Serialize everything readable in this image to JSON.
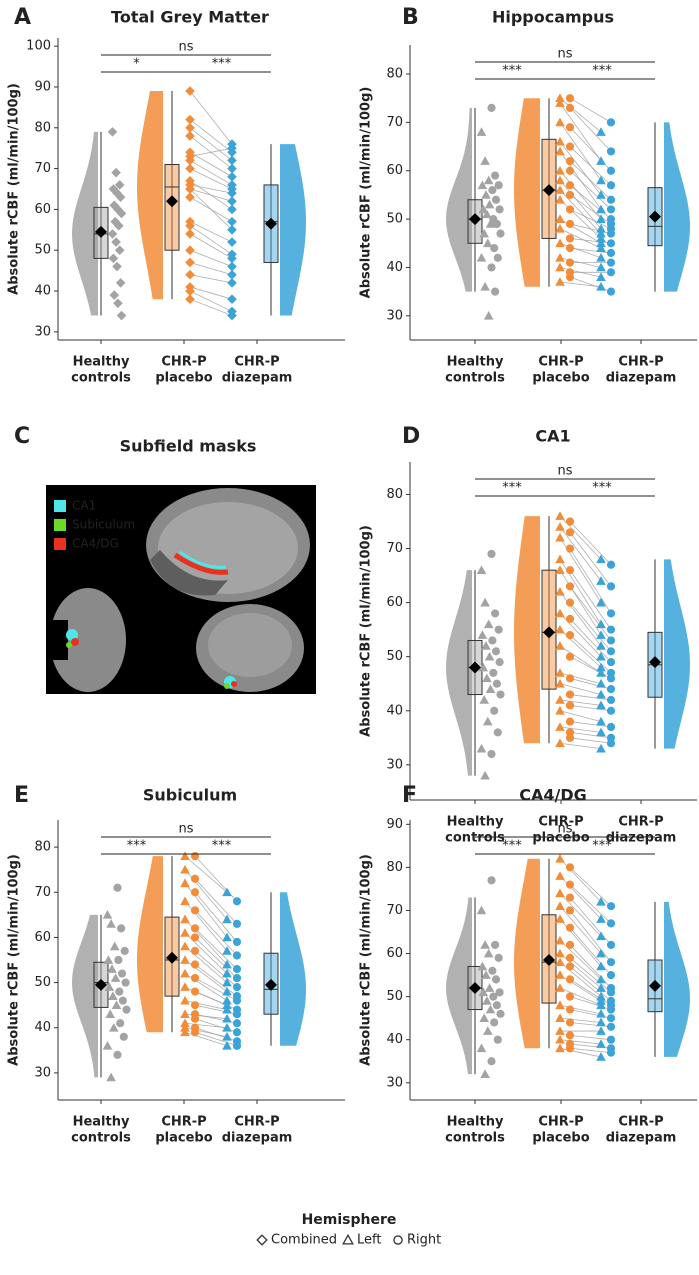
{
  "chart_data": [
    {
      "type": "raincloud",
      "panel": "A",
      "title": "Total Grey Matter",
      "ylabel": "Absolute rCBF (ml/min/100g)",
      "categories": [
        [
          "Healthy",
          "controls"
        ],
        [
          "CHR-P",
          "placebo"
        ],
        [
          "CHR-P",
          "diazepam"
        ]
      ],
      "colors": [
        "#a3a3a3",
        "#f28c38",
        "#3aa3d8"
      ],
      "ylim": [
        28,
        102
      ],
      "yticks": [
        30,
        40,
        50,
        60,
        70,
        80,
        90,
        100
      ],
      "groups": [
        {
          "box": [
            34,
            48,
            54,
            60.5,
            79
          ],
          "mean": 54.5,
          "combined": [
            79,
            69,
            66,
            65,
            64,
            63,
            61,
            60,
            59,
            57,
            56,
            54,
            52,
            50,
            48,
            46,
            42,
            39,
            37,
            34
          ]
        },
        {
          "box": [
            38,
            50,
            65.5,
            71,
            89
          ],
          "mean": 62,
          "combined": [
            89,
            82,
            80,
            78,
            74,
            73,
            72,
            70,
            67,
            66,
            65,
            65,
            63,
            57,
            56,
            54,
            50,
            47,
            44,
            41,
            40,
            38
          ]
        },
        {
          "box": [
            34,
            47,
            57,
            66,
            76
          ],
          "mean": 56.5,
          "combined": [
            76,
            74,
            72,
            70,
            68,
            75,
            66,
            65,
            60,
            64,
            62,
            55,
            57,
            52,
            49,
            48,
            46,
            44,
            42,
            38,
            35,
            34
          ]
        }
      ],
      "comparisons": [
        {
          "groups": [
            0,
            2
          ],
          "label": "ns"
        },
        {
          "groups": [
            0,
            1
          ],
          "label": "*"
        },
        {
          "groups": [
            1,
            2
          ],
          "label": "***"
        }
      ]
    },
    {
      "type": "raincloud",
      "panel": "B",
      "title": "Hippocampus",
      "ylabel": "Absolute rCBF (ml/min/100g)",
      "categories": [
        [
          "Healthy",
          "controls"
        ],
        [
          "CHR-P",
          "placebo"
        ],
        [
          "CHR-P",
          "diazepam"
        ]
      ],
      "colors": [
        "#a3a3a3",
        "#f28c38",
        "#3aa3d8"
      ],
      "ylim": [
        25,
        86
      ],
      "yticks": [
        30,
        40,
        50,
        60,
        70,
        80
      ],
      "groups": [
        {
          "box": [
            35,
            45,
            50,
            54,
            73
          ],
          "mean": 50,
          "left": [
            68,
            62,
            58,
            57,
            55,
            53,
            52,
            51,
            49,
            47,
            45,
            42,
            36,
            30
          ],
          "right": [
            73,
            59,
            57,
            56,
            54,
            52,
            50,
            49,
            47,
            44,
            42,
            40,
            35
          ]
        },
        {
          "box": [
            36,
            46,
            56,
            66.5,
            75
          ],
          "mean": 56,
          "left": [
            75,
            74,
            70,
            66,
            64,
            60,
            58,
            56,
            54,
            50,
            48,
            45,
            42,
            40,
            37
          ],
          "right": [
            75,
            73,
            69,
            65,
            62,
            60,
            57,
            55,
            52,
            49,
            46,
            44,
            41,
            39,
            38
          ]
        },
        {
          "box": [
            35,
            44.5,
            48.5,
            56.5,
            70
          ],
          "mean": 50.5,
          "left": [
            68,
            62,
            58,
            55,
            52,
            50,
            48,
            47,
            46,
            45,
            44,
            42,
            40,
            38,
            36
          ],
          "right": [
            70,
            64,
            60,
            57,
            54,
            52,
            50,
            49,
            48,
            47,
            45,
            43,
            41,
            39,
            35
          ]
        }
      ],
      "comparisons": [
        {
          "groups": [
            0,
            2
          ],
          "label": "ns"
        },
        {
          "groups": [
            0,
            1
          ],
          "label": "***"
        },
        {
          "groups": [
            1,
            2
          ],
          "label": "***"
        }
      ]
    },
    {
      "type": "raincloud",
      "panel": "D",
      "title": "CA1",
      "ylabel": "Absolute rCBF (ml/min/100g)",
      "categories": [
        [
          "Healthy",
          "controls"
        ],
        [
          "CHR-P",
          "placebo"
        ],
        [
          "CHR-P",
          "diazepam"
        ]
      ],
      "colors": [
        "#a3a3a3",
        "#f28c38",
        "#3aa3d8"
      ],
      "ylim": [
        23.5,
        86
      ],
      "yticks": [
        30,
        40,
        50,
        60,
        70,
        80
      ],
      "groups": [
        {
          "box": [
            28,
            43,
            48,
            53,
            66
          ],
          "mean": 48,
          "left": [
            66,
            60,
            56,
            54,
            52,
            50,
            48,
            46,
            44,
            42,
            38,
            33,
            28
          ],
          "right": [
            69,
            58,
            55,
            53,
            51,
            49,
            47,
            45,
            43,
            40,
            36,
            32
          ]
        },
        {
          "box": [
            34,
            44,
            54.5,
            66,
            76
          ],
          "mean": 54.5,
          "left": [
            76,
            74,
            72,
            68,
            66,
            62,
            58,
            55,
            52,
            47,
            45,
            42,
            40,
            37,
            34
          ],
          "right": [
            75,
            73,
            70,
            66,
            63,
            60,
            57,
            54,
            50,
            46,
            43,
            41,
            38,
            36,
            35
          ]
        },
        {
          "box": [
            33,
            42.5,
            48.5,
            54.5,
            68
          ],
          "mean": 49,
          "left": [
            68,
            64,
            60,
            56,
            54,
            52,
            50,
            48,
            47,
            45,
            43,
            41,
            38,
            36,
            33
          ],
          "right": [
            67,
            63,
            58,
            55,
            53,
            51,
            49,
            47,
            46,
            44,
            42,
            40,
            37,
            35,
            34
          ]
        }
      ],
      "comparisons": [
        {
          "groups": [
            0,
            2
          ],
          "label": "ns"
        },
        {
          "groups": [
            0,
            1
          ],
          "label": "***"
        },
        {
          "groups": [
            1,
            2
          ],
          "label": "***"
        }
      ]
    },
    {
      "type": "raincloud",
      "panel": "E",
      "title": "Subiculum",
      "ylabel": "Absolute rCBF (ml/min/100g)",
      "categories": [
        [
          "Healthy",
          "controls"
        ],
        [
          "CHR-P",
          "placebo"
        ],
        [
          "CHR-P",
          "diazepam"
        ]
      ],
      "colors": [
        "#a3a3a3",
        "#f28c38",
        "#3aa3d8"
      ],
      "ylim": [
        24,
        86
      ],
      "yticks": [
        30,
        40,
        50,
        60,
        70,
        80
      ],
      "groups": [
        {
          "box": [
            29,
            44.5,
            50,
            54.5,
            65
          ],
          "mean": 49.5,
          "left": [
            65,
            63,
            58,
            55,
            53,
            51,
            49,
            47,
            45,
            43,
            40,
            36,
            29
          ],
          "right": [
            71,
            62,
            57,
            55,
            52,
            50,
            48,
            46,
            44,
            41,
            38,
            34
          ]
        },
        {
          "box": [
            39,
            47,
            55,
            64.5,
            78
          ],
          "mean": 55.5,
          "left": [
            78,
            75,
            72,
            68,
            64,
            61,
            58,
            55,
            52,
            49,
            46,
            43,
            41,
            40,
            39
          ],
          "right": [
            78,
            73,
            70,
            66,
            62,
            60,
            57,
            54,
            51,
            48,
            45,
            43,
            42,
            40,
            39
          ]
        },
        {
          "box": [
            36,
            43,
            48.5,
            56.5,
            70
          ],
          "mean": 49.5,
          "left": [
            70,
            64,
            60,
            57,
            54,
            52,
            50,
            48,
            46,
            45,
            44,
            42,
            40,
            38,
            36
          ],
          "right": [
            68,
            63,
            59,
            56,
            53,
            51,
            49,
            47,
            46,
            44,
            43,
            41,
            39,
            37,
            36
          ]
        }
      ],
      "comparisons": [
        {
          "groups": [
            0,
            2
          ],
          "label": "ns"
        },
        {
          "groups": [
            0,
            1
          ],
          "label": "***"
        },
        {
          "groups": [
            1,
            2
          ],
          "label": "***"
        }
      ]
    },
    {
      "type": "raincloud",
      "panel": "F",
      "title": "CA4/DG",
      "ylabel": "Absolute rCBF (ml/min/100g)",
      "categories": [
        [
          "Healthy",
          "controls"
        ],
        [
          "CHR-P",
          "placebo"
        ],
        [
          "CHR-P",
          "diazepam"
        ]
      ],
      "colors": [
        "#a3a3a3",
        "#f28c38",
        "#3aa3d8"
      ],
      "ylim": [
        26,
        91
      ],
      "yticks": [
        30,
        40,
        50,
        60,
        70,
        80,
        90
      ],
      "groups": [
        {
          "box": [
            32,
            47,
            52,
            57,
            73
          ],
          "mean": 52,
          "left": [
            70,
            62,
            60,
            57,
            55,
            52,
            51,
            49,
            47,
            45,
            42,
            38,
            32
          ],
          "right": [
            77,
            62,
            59,
            56,
            54,
            51,
            50,
            48,
            46,
            44,
            40,
            35
          ]
        },
        {
          "box": [
            38,
            48.5,
            58,
            69,
            82
          ],
          "mean": 58.5,
          "left": [
            82,
            78,
            74,
            71,
            68,
            63,
            60,
            58,
            55,
            52,
            48,
            45,
            42,
            40,
            38
          ],
          "right": [
            80,
            76,
            73,
            70,
            66,
            62,
            59,
            57,
            54,
            50,
            47,
            44,
            41,
            39,
            38
          ]
        },
        {
          "box": [
            36,
            46.5,
            49.5,
            58.5,
            72
          ],
          "mean": 52.5,
          "left": [
            72,
            68,
            64,
            60,
            57,
            54,
            52,
            50,
            49,
            48,
            46,
            44,
            42,
            39,
            36
          ],
          "right": [
            71,
            67,
            62,
            58,
            55,
            52,
            51,
            49,
            48,
            47,
            45,
            43,
            40,
            38,
            37
          ]
        }
      ],
      "comparisons": [
        {
          "groups": [
            0,
            2
          ],
          "label": "ns"
        },
        {
          "groups": [
            0,
            1
          ],
          "label": "***"
        },
        {
          "groups": [
            1,
            2
          ],
          "label": "***"
        }
      ]
    }
  ],
  "image_panel": {
    "panel": "C",
    "title": "Subfield masks",
    "legend": [
      {
        "label": "CA1",
        "color": "#4fe6ea"
      },
      {
        "label": "Subiculum",
        "color": "#6ad92a"
      },
      {
        "label": "CA4/DG",
        "color": "#e8321f"
      }
    ]
  },
  "hemisphere_legend": {
    "title": "Hemisphere",
    "items": [
      "Combined",
      "Left",
      "Right"
    ]
  }
}
